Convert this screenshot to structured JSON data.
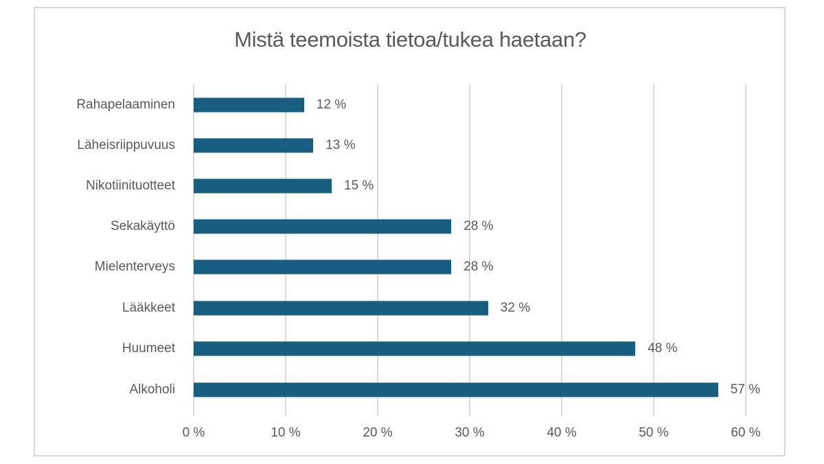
{
  "chart_data": {
    "type": "bar",
    "orientation": "horizontal",
    "title": "Mistä teemoista tietoa/tukea haetaan?",
    "categories": [
      "Rahapelaaminen",
      "Läheisriippuvuus",
      "Nikotiinituotteet",
      "Sekakäyttö",
      "Mielenterveys",
      "Lääkkeet",
      "Huumeet",
      "Alkoholi"
    ],
    "values": [
      12,
      13,
      15,
      28,
      28,
      32,
      48,
      57
    ],
    "value_labels": [
      "12 %",
      "13 %",
      "15 %",
      "28 %",
      "28 %",
      "32 %",
      "48 %",
      "57 %"
    ],
    "xlabel": "",
    "ylabel": "",
    "xlim": [
      0,
      60
    ],
    "x_ticks": [
      "0 %",
      "10 %",
      "20 %",
      "30 %",
      "40 %",
      "50 %",
      "60 %"
    ],
    "grid": true,
    "legend": null,
    "bar_color": "#175e81"
  }
}
